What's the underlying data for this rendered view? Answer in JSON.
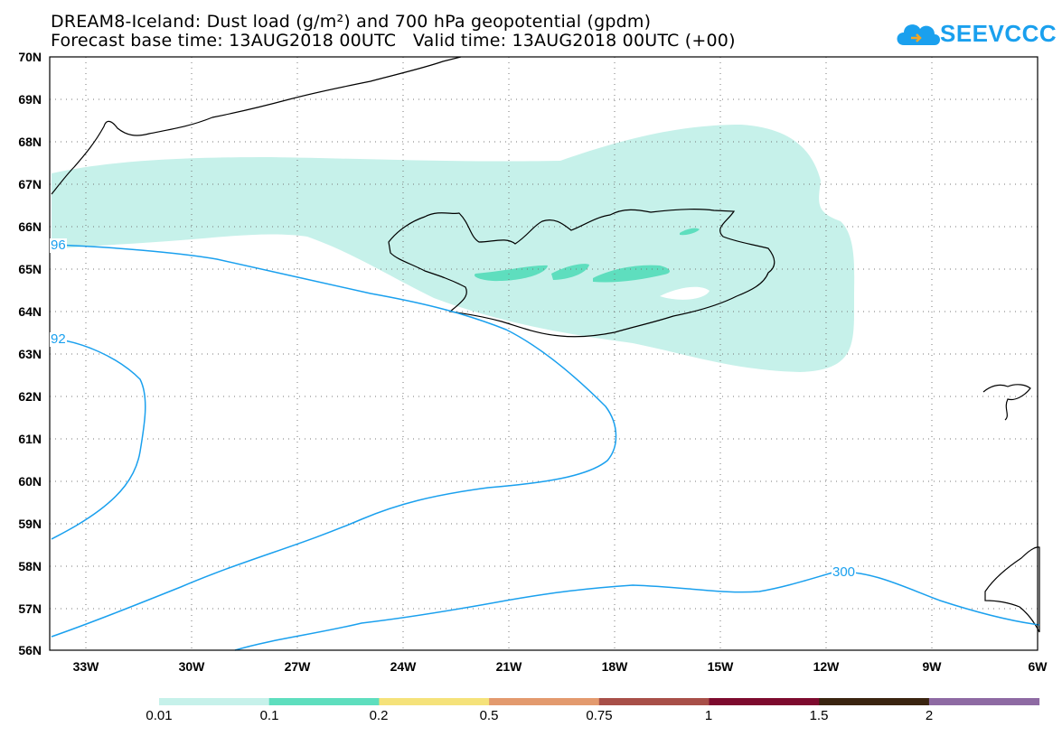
{
  "header": {
    "title_line1": "DREAM8-Iceland: Dust load (g/m²) and 700 hPa geopotential (gpdm)",
    "title_line2": "Forecast base time: 13AUG2018 00UTC   Valid time: 13AUG2018 00UTC (+00)"
  },
  "logo": {
    "text": "SEEVCCC",
    "icon": "cloud-logo-icon",
    "color": "#1aa0ee"
  },
  "map": {
    "lat_labels": [
      "70N",
      "69N",
      "68N",
      "67N",
      "66N",
      "65N",
      "64N",
      "63N",
      "62N",
      "61N",
      "60N",
      "59N",
      "58N",
      "57N",
      "56N"
    ],
    "lon_labels": [
      "33W",
      "30W",
      "27W",
      "24W",
      "21W",
      "18W",
      "15W",
      "12W",
      "9W",
      "6W"
    ],
    "contour_labels": [
      "96",
      "92",
      "300"
    ],
    "contour_color": "#1aa0ee",
    "coast_color": "#000000"
  },
  "legend": {
    "labels": [
      "0.01",
      "0.1",
      "0.2",
      "0.5",
      "0.75",
      "1",
      "1.5",
      "2"
    ],
    "colors": [
      "#c6f1ea",
      "#5edebe",
      "#f5e27a",
      "#e39a6e",
      "#a84f48",
      "#7d0a2e",
      "#3a2410",
      "#8e6aa3"
    ]
  }
}
